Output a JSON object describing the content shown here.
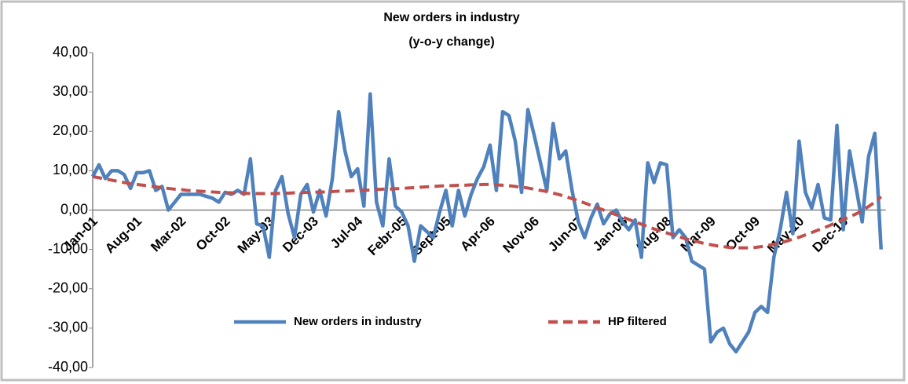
{
  "chart_data": {
    "type": "line",
    "title": "New orders in industry",
    "subtitle": "(y-o-y change)",
    "categories": [
      "Jan-01",
      null,
      null,
      null,
      null,
      null,
      null,
      "Aug-01",
      null,
      null,
      null,
      null,
      null,
      null,
      "Mar-02",
      null,
      null,
      null,
      null,
      null,
      null,
      "Oct-02",
      null,
      null,
      null,
      null,
      null,
      null,
      "May-03",
      null,
      null,
      null,
      null,
      null,
      null,
      "Dec-03",
      null,
      null,
      null,
      null,
      null,
      null,
      "Jul-04",
      null,
      null,
      null,
      null,
      null,
      null,
      "Febr-05",
      null,
      null,
      null,
      null,
      null,
      null,
      "Sept-05",
      null,
      null,
      null,
      null,
      null,
      null,
      "Apr-06",
      null,
      null,
      null,
      null,
      null,
      null,
      "Nov-06",
      null,
      null,
      null,
      null,
      null,
      null,
      "Jun-07",
      null,
      null,
      null,
      null,
      null,
      null,
      "Jan-08",
      null,
      null,
      null,
      null,
      null,
      null,
      "Aug-08",
      null,
      null,
      null,
      null,
      null,
      null,
      "Mar-09",
      null,
      null,
      null,
      null,
      null,
      null,
      "Oct-09",
      null,
      null,
      null,
      null,
      null,
      null,
      "May-10",
      null,
      null,
      null,
      null,
      null,
      null,
      "Dec-10",
      null,
      null,
      null,
      null,
      null,
      null
    ],
    "series": [
      {
        "name": "New orders in industry",
        "color": "#4f81bd",
        "dashed": false,
        "values": [
          8.5,
          11.5,
          8,
          10,
          10,
          9,
          5.5,
          9.5,
          9.5,
          10,
          5,
          6,
          0,
          2,
          4,
          4,
          4,
          4,
          3.5,
          3,
          2,
          4.5,
          4,
          5,
          4,
          13,
          -3.5,
          -4,
          -12,
          5,
          8.5,
          -1,
          -7,
          4,
          6.5,
          -0.5,
          5,
          -1.5,
          8,
          25,
          15,
          8.5,
          10.5,
          1,
          29.5,
          2,
          -4,
          13,
          1,
          -0.5,
          -4,
          -13,
          -4,
          -5.5,
          -7,
          -0.5,
          5,
          -4,
          5,
          -1.5,
          4,
          8,
          11,
          16.5,
          5,
          25,
          24,
          17.5,
          4.5,
          25.5,
          19,
          12,
          5,
          22,
          13,
          15,
          5,
          -3,
          -7,
          -2,
          1.5,
          -3.5,
          -1,
          0,
          -3,
          -5,
          -2.5,
          -12,
          12,
          7,
          12,
          11.5,
          -7,
          -5,
          -7,
          -13,
          -14,
          -15,
          -33.5,
          -31,
          -30,
          -34,
          -36,
          -33.5,
          -31,
          -26,
          -24.5,
          -26,
          -12,
          -5,
          4.5,
          -6,
          17.5,
          4.5,
          0.5,
          6.5,
          -2,
          -2.5,
          21.5,
          -5,
          15,
          6,
          -3,
          13.5,
          19.5,
          -10
        ]
      },
      {
        "name": "HP filtered",
        "color": "#c0504d",
        "dashed": true,
        "values": [
          8.5,
          8.2,
          7.9,
          7.6,
          7.3,
          7.0,
          6.7,
          6.5,
          6.3,
          6.1,
          5.9,
          5.7,
          5.5,
          5.3,
          5.2,
          5.0,
          4.9,
          4.8,
          4.7,
          4.6,
          4.5,
          4.4,
          4.4,
          4.3,
          4.3,
          4.2,
          4.2,
          4.2,
          4.2,
          4.2,
          4.3,
          4.3,
          4.4,
          4.4,
          4.5,
          4.5,
          4.6,
          4.6,
          4.7,
          4.8,
          4.8,
          4.9,
          5.0,
          5.0,
          5.1,
          5.2,
          5.3,
          5.3,
          5.4,
          5.5,
          5.6,
          5.7,
          5.8,
          5.9,
          6.0,
          6.1,
          6.2,
          6.2,
          6.3,
          6.3,
          6.4,
          6.4,
          6.5,
          6.5,
          6.4,
          6.3,
          6.2,
          6.0,
          5.8,
          5.6,
          5.3,
          5.0,
          4.7,
          4.3,
          3.9,
          3.4,
          2.9,
          2.4,
          1.8,
          1.2,
          0.6,
          0.0,
          -0.6,
          -1.2,
          -1.8,
          -2.4,
          -3.0,
          -3.6,
          -4.2,
          -4.8,
          -5.3,
          -5.8,
          -6.3,
          -6.8,
          -7.3,
          -7.7,
          -8.1,
          -8.5,
          -8.8,
          -9.1,
          -9.3,
          -9.5,
          -9.6,
          -9.6,
          -9.6,
          -9.5,
          -9.3,
          -9.0,
          -8.7,
          -8.3,
          -7.9,
          -7.4,
          -6.9,
          -6.3,
          -5.7,
          -5.1,
          -4.5,
          -3.8,
          -3.1,
          -2.4,
          -1.7,
          -1.0,
          -0.2,
          0.9,
          2.0,
          3.4
        ]
      }
    ],
    "ylim": [
      -40,
      40
    ],
    "yticks": [
      {
        "value": -40,
        "label": "-40,00"
      },
      {
        "value": -30,
        "label": "-30,00"
      },
      {
        "value": -20,
        "label": "-20,00"
      },
      {
        "value": -10,
        "label": "-10,00"
      },
      {
        "value": 0,
        "label": "0,00"
      },
      {
        "value": 10,
        "label": "10,00"
      },
      {
        "value": 20,
        "label": "20,00"
      },
      {
        "value": 30,
        "label": "30,00"
      },
      {
        "value": 40,
        "label": "40,00"
      }
    ],
    "legend": "bottom",
    "grid": false
  }
}
